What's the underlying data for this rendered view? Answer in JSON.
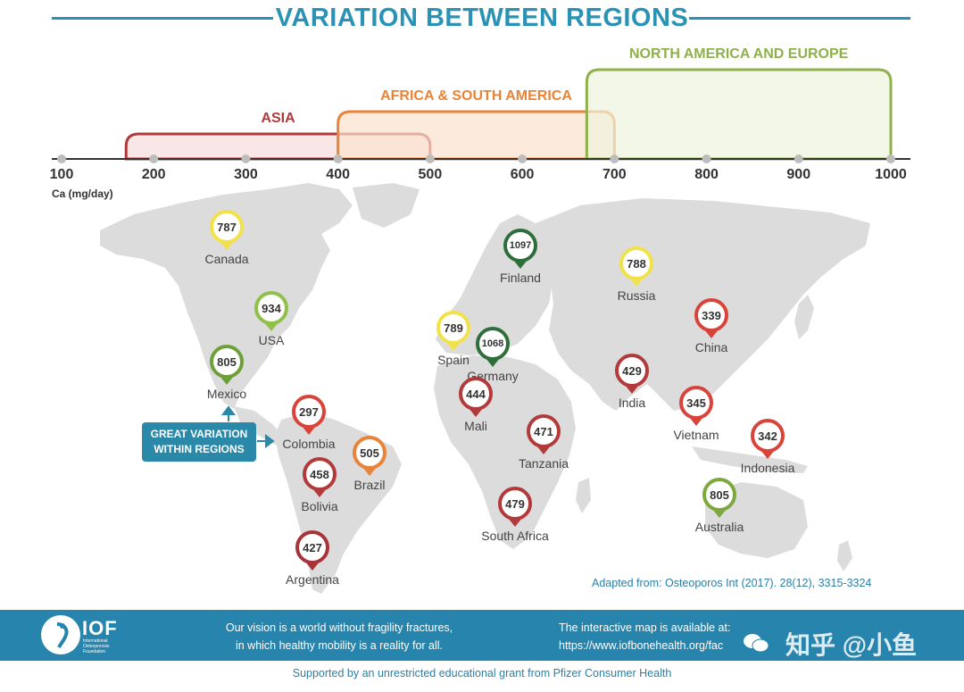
{
  "title": "VARIATION BETWEEN REGIONS",
  "scale": {
    "ticks": [
      "100",
      "200",
      "300",
      "400",
      "500",
      "600",
      "700",
      "800",
      "900",
      "1000"
    ],
    "unit_label": "Ca (mg/day)",
    "tick_values": [
      100,
      200,
      300,
      400,
      500,
      600,
      700,
      800,
      900,
      1000
    ]
  },
  "regions": [
    {
      "label": "ASIA",
      "min": 170,
      "max": 500,
      "color": "#b03a3a",
      "fill": "#f6dcdc"
    },
    {
      "label": "AFRICA & SOUTH AMERICA",
      "min": 400,
      "max": 700,
      "color": "#e8843a",
      "fill": "#fbe3cf"
    },
    {
      "label": "NORTH AMERICA AND EUROPE",
      "min": 670,
      "max": 1000,
      "color": "#8fb04a",
      "fill": "#eef3de"
    }
  ],
  "countries": [
    {
      "name": "Canada",
      "value": "787",
      "color": "#f1e24a"
    },
    {
      "name": "USA",
      "value": "934",
      "color": "#8fc04a"
    },
    {
      "name": "Mexico",
      "value": "805",
      "color": "#6ea03a"
    },
    {
      "name": "Colombia",
      "value": "297",
      "color": "#d9443a"
    },
    {
      "name": "Brazil",
      "value": "505",
      "color": "#e8843a"
    },
    {
      "name": "Bolivia",
      "value": "458",
      "color": "#b33a3a"
    },
    {
      "name": "Argentina",
      "value": "427",
      "color": "#a8343a"
    },
    {
      "name": "Finland",
      "value": "1097",
      "color": "#2f6e3a"
    },
    {
      "name": "Germany",
      "value": "1068",
      "color": "#2f6e3a"
    },
    {
      "name": "Spain",
      "value": "789",
      "color": "#f1e24a"
    },
    {
      "name": "Mali",
      "value": "444",
      "color": "#b33a3a"
    },
    {
      "name": "Tanzania",
      "value": "471",
      "color": "#b33a3a"
    },
    {
      "name": "South Africa",
      "value": "479",
      "color": "#b33a3a"
    },
    {
      "name": "Russia",
      "value": "788",
      "color": "#f1e24a"
    },
    {
      "name": "China",
      "value": "339",
      "color": "#d9443a"
    },
    {
      "name": "India",
      "value": "429",
      "color": "#b33a3a"
    },
    {
      "name": "Vietnam",
      "value": "345",
      "color": "#d9443a"
    },
    {
      "name": "Indonesia",
      "value": "342",
      "color": "#d9443a"
    },
    {
      "name": "Australia",
      "value": "805",
      "color": "#7ea83e"
    }
  ],
  "callout": {
    "line1": "GREAT VARIATION",
    "line2": "WITHIN REGIONS"
  },
  "source": "Adapted from: Osteoporos Int (2017). 28(12), 3315-3324",
  "footer": {
    "logo_text": "IOF",
    "logo_sub": "International Osteoporosis Foundation",
    "vision_line1": "Our vision is a world without fragility fractures,",
    "vision_line2": "in which healthy mobility is a reality for all.",
    "map_line1": "The interactive map is available at:",
    "map_line2": "https://www.iofbonehealth.org/fac",
    "watermark": "知乎 @小鱼"
  },
  "support": "Supported by an unrestricted educational grant from Pfizer Consumer Health"
}
